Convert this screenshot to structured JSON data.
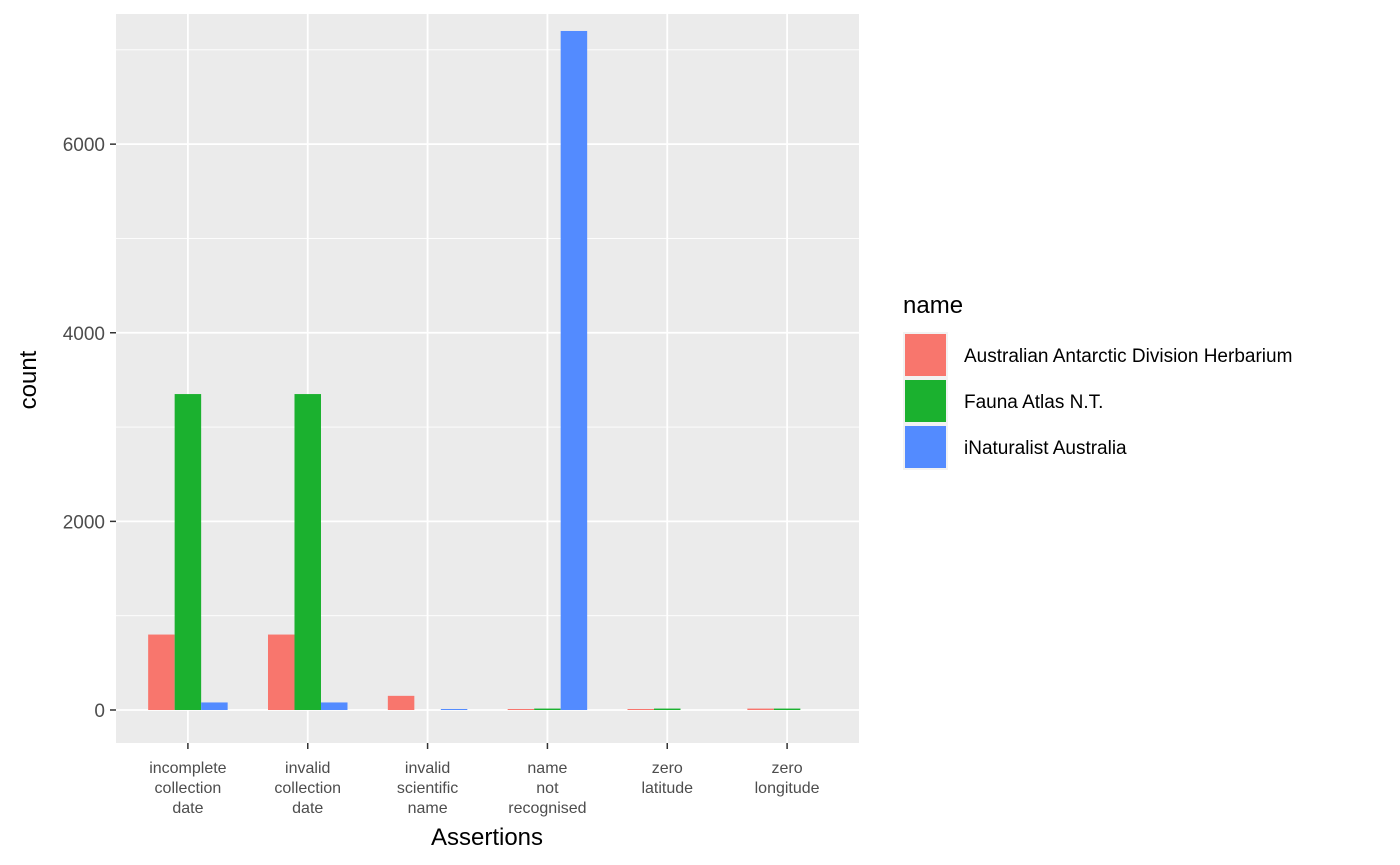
{
  "chart_data": {
    "type": "bar",
    "title": "",
    "xlabel": "Assertions",
    "ylabel": "count",
    "ylim": [
      -350,
      7380
    ],
    "yticks": [
      0,
      2000,
      4000,
      6000
    ],
    "grid": true,
    "legend": {
      "title": "name",
      "placement": "right"
    },
    "categories": [
      [
        "incomplete",
        "collection",
        "date"
      ],
      [
        "invalid",
        "collection",
        "date"
      ],
      [
        "invalid",
        "scientific",
        "name"
      ],
      [
        "name",
        "not",
        "recognised"
      ],
      [
        "zero",
        "latitude"
      ],
      [
        "zero",
        "longitude"
      ]
    ],
    "series": [
      {
        "name": "Australian Antarctic Division Herbarium",
        "color": "#F8766D",
        "values": [
          800,
          800,
          150,
          10,
          5,
          15
        ]
      },
      {
        "name": "Fauna Atlas N.T.",
        "color": "#1BB12F",
        "values": [
          3350,
          3350,
          0,
          15,
          15,
          15
        ]
      },
      {
        "name": "iNaturalist Australia",
        "color": "#538BFF",
        "values": [
          80,
          80,
          8,
          7200,
          0,
          0
        ]
      }
    ]
  }
}
